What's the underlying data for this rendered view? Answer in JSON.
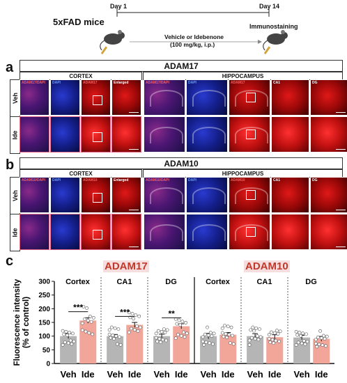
{
  "schematic": {
    "mouse_label": "5xFAD mice",
    "day_start": "Day 1",
    "day_end": "Day 14",
    "end_label": "Immunostaining",
    "treatment_line1": "Vehicle or Idebenone",
    "treatment_line2": "(100 mg/kg, i.p.)"
  },
  "panel_a": {
    "letter": "a",
    "title": "ADAM17",
    "cortex": "CORTEX",
    "hippocampus": "HIPPOCAMPUS",
    "rows": [
      "Veh",
      "Ide"
    ],
    "cols": [
      "ADAM17/DAPI",
      "DAPI",
      "ADAM17",
      "Enlarged",
      "ADAM17/DAPI",
      "DAPI",
      "ADAM17",
      "CA1",
      "DG"
    ]
  },
  "panel_b": {
    "letter": "b",
    "title": "ADAM10",
    "cortex": "CORTEX",
    "hippocampus": "HIPPOCAMPUS",
    "rows": [
      "Veh",
      "Ide"
    ],
    "cols": [
      "ADAM10/DAPI",
      "DAPI",
      "ADAM10",
      "Enlarged",
      "ADAM10/DAPI",
      "DAPI",
      "ADAM10",
      "CA1",
      "DG"
    ]
  },
  "panel_c": {
    "letter": "c",
    "heading_adam17": "ADAM17",
    "heading_adam10": "ADAM10"
  },
  "colors": {
    "veh_bar": "#b5b5b5",
    "ide_bar": "#f2a69a",
    "heading_adam17": "#c0392b",
    "heading_adam10": "#c0392b",
    "heading_bg": "#f6dede",
    "fluor_red": "#d01010",
    "fluor_blue": "#1a2fb0",
    "fluor_merge": "#5a1a8a"
  },
  "chart_data": {
    "type": "bar",
    "ylabel": "Fluorescence intensity (% of control)",
    "ylim": [
      0,
      300
    ],
    "yticks": [
      0,
      50,
      100,
      150,
      200,
      250,
      300
    ],
    "groups": [
      {
        "protein": "ADAM17",
        "region": "Cortex",
        "categories": [
          "Veh",
          "Ide"
        ],
        "values": [
          100,
          157
        ],
        "errors": [
          9,
          10
        ],
        "significance": "***"
      },
      {
        "protein": "ADAM17",
        "region": "CA1",
        "categories": [
          "Veh",
          "Ide"
        ],
        "values": [
          100,
          141
        ],
        "errors": [
          6,
          9
        ],
        "significance": "***"
      },
      {
        "protein": "ADAM17",
        "region": "DG",
        "categories": [
          "Veh",
          "Ide"
        ],
        "values": [
          100,
          136
        ],
        "errors": [
          7,
          9
        ],
        "significance": "**"
      },
      {
        "protein": "ADAM10",
        "region": "Cortex",
        "categories": [
          "Veh",
          "Ide"
        ],
        "values": [
          100,
          105
        ],
        "errors": [
          10,
          8
        ],
        "significance": ""
      },
      {
        "protein": "ADAM10",
        "region": "CA1",
        "categories": [
          "Veh",
          "Ide"
        ],
        "values": [
          100,
          96
        ],
        "errors": [
          9,
          9
        ],
        "significance": ""
      },
      {
        "protein": "ADAM10",
        "region": "DG",
        "categories": [
          "Veh",
          "Ide"
        ],
        "values": [
          95,
          90
        ],
        "errors": [
          8,
          9
        ],
        "significance": ""
      }
    ]
  }
}
